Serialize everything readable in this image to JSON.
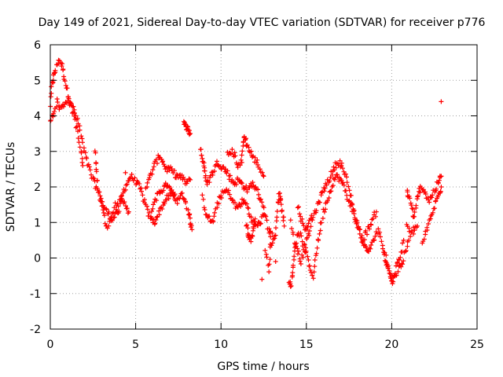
{
  "chart_data": {
    "type": "scatter",
    "title": "Day 149 of 2021, Sidereal Day-to-day VTEC variation (SDTVAR) for receiver p776",
    "xlabel": "GPS time / hours",
    "ylabel": "SDTVAR / TECUs",
    "xlim": [
      0,
      25
    ],
    "ylim": [
      -2,
      6
    ],
    "xticks": [
      "0",
      "5",
      "10",
      "15",
      "20",
      "25"
    ],
    "yticks": [
      "-2",
      "-1",
      "0",
      "1",
      "2",
      "3",
      "4",
      "5",
      "6"
    ],
    "grid": true,
    "marker": "+",
    "series": [
      {
        "name": "SDTVAR",
        "color": "#ff0000",
        "traces": [
          [
            [
              0.0,
              4.3
            ],
            [
              0.1,
              4.9
            ],
            [
              0.2,
              5.1
            ],
            [
              0.3,
              5.3
            ],
            [
              0.5,
              5.6
            ],
            [
              0.7,
              5.4
            ],
            [
              0.8,
              5.1
            ],
            [
              1.0,
              4.7
            ],
            [
              1.2,
              4.4
            ],
            [
              1.5,
              4.0
            ],
            [
              1.7,
              3.7
            ],
            [
              1.9,
              3.2
            ],
            [
              2.1,
              2.8
            ],
            [
              2.3,
              2.5
            ],
            [
              2.5,
              2.2
            ],
            [
              2.7,
              2.0
            ],
            [
              2.9,
              1.7
            ],
            [
              3.1,
              1.5
            ],
            [
              3.3,
              1.3
            ],
            [
              3.5,
              1.2
            ],
            [
              3.7,
              1.1
            ],
            [
              3.9,
              1.4
            ],
            [
              4.1,
              1.6
            ],
            [
              4.3,
              1.9
            ],
            [
              4.5,
              2.1
            ],
            [
              4.7,
              2.3
            ],
            [
              4.9,
              2.2
            ],
            [
              5.1,
              2.1
            ],
            [
              5.3,
              1.9
            ],
            [
              5.5,
              1.6
            ],
            [
              5.7,
              1.3
            ],
            [
              5.9,
              1.1
            ],
            [
              6.1,
              1.0
            ],
            [
              6.3,
              1.2
            ],
            [
              6.5,
              1.4
            ],
            [
              6.7,
              1.6
            ],
            [
              6.9,
              1.7
            ],
            [
              7.1,
              1.8
            ],
            [
              7.3,
              1.7
            ],
            [
              7.5,
              1.6
            ],
            [
              7.7,
              1.8
            ],
            [
              7.9,
              1.6
            ],
            [
              8.1,
              1.3
            ],
            [
              8.2,
              1.0
            ],
            [
              8.3,
              0.8
            ]
          ],
          [
            [
              0.0,
              3.9
            ],
            [
              0.2,
              4.1
            ],
            [
              0.4,
              4.4
            ],
            [
              0.6,
              4.2
            ],
            [
              0.8,
              4.3
            ],
            [
              1.0,
              4.5
            ],
            [
              1.2,
              4.3
            ],
            [
              1.4,
              4.0
            ],
            [
              1.6,
              3.5
            ],
            [
              1.8,
              3.0
            ],
            [
              1.9,
              2.6
            ]
          ],
          [
            [
              2.6,
              3.0
            ],
            [
              2.7,
              2.5
            ],
            [
              2.8,
              2.0
            ],
            [
              3.0,
              1.6
            ],
            [
              3.2,
              1.0
            ],
            [
              3.4,
              0.9
            ],
            [
              3.6,
              1.2
            ],
            [
              3.8,
              1.5
            ],
            [
              4.0,
              1.3
            ],
            [
              4.2,
              1.6
            ],
            [
              4.4,
              1.5
            ],
            [
              4.6,
              1.3
            ]
          ],
          [
            [
              5.6,
              2.0
            ],
            [
              5.8,
              2.2
            ],
            [
              6.0,
              2.5
            ],
            [
              6.2,
              2.7
            ],
            [
              6.4,
              2.9
            ],
            [
              6.6,
              2.7
            ],
            [
              6.8,
              2.5
            ],
            [
              7.0,
              2.5
            ],
            [
              7.2,
              2.4
            ],
            [
              7.4,
              2.3
            ],
            [
              7.6,
              2.3
            ],
            [
              7.8,
              2.2
            ],
            [
              8.0,
              2.1
            ],
            [
              8.2,
              2.2
            ]
          ],
          [
            [
              5.9,
              1.2
            ],
            [
              6.1,
              1.6
            ],
            [
              6.3,
              1.8
            ],
            [
              6.5,
              1.9
            ],
            [
              6.7,
              2.0
            ],
            [
              6.9,
              2.1
            ],
            [
              7.1,
              1.9
            ],
            [
              7.3,
              1.8
            ]
          ],
          [
            [
              7.8,
              3.8
            ],
            [
              7.9,
              3.7
            ],
            [
              8.0,
              3.7
            ],
            [
              8.1,
              3.6
            ],
            [
              8.2,
              3.5
            ]
          ],
          [
            [
              8.8,
              3.1
            ],
            [
              8.9,
              2.8
            ],
            [
              9.0,
              2.6
            ],
            [
              9.1,
              2.3
            ],
            [
              9.2,
              2.1
            ],
            [
              9.4,
              2.3
            ],
            [
              9.6,
              2.5
            ],
            [
              9.8,
              2.7
            ],
            [
              10.0,
              2.6
            ],
            [
              10.2,
              2.5
            ],
            [
              10.4,
              2.4
            ],
            [
              10.6,
              2.2
            ],
            [
              10.8,
              2.1
            ],
            [
              11.0,
              2.2
            ],
            [
              11.2,
              2.1
            ],
            [
              11.4,
              2.0
            ],
            [
              11.6,
              1.9
            ],
            [
              11.8,
              2.1
            ],
            [
              12.0,
              2.0
            ],
            [
              12.2,
              1.8
            ],
            [
              12.4,
              1.6
            ],
            [
              12.6,
              1.2
            ],
            [
              12.8,
              0.8
            ],
            [
              12.9,
              0.6
            ]
          ],
          [
            [
              8.9,
              1.7
            ],
            [
              9.1,
              1.3
            ],
            [
              9.3,
              1.1
            ],
            [
              9.5,
              1.0
            ],
            [
              9.7,
              1.3
            ],
            [
              9.9,
              1.7
            ],
            [
              10.1,
              1.8
            ],
            [
              10.3,
              1.9
            ],
            [
              10.5,
              1.8
            ],
            [
              10.7,
              1.6
            ],
            [
              10.9,
              1.4
            ],
            [
              11.1,
              1.5
            ],
            [
              11.3,
              1.6
            ],
            [
              11.5,
              1.5
            ],
            [
              11.7,
              1.2
            ],
            [
              11.9,
              1.0
            ],
            [
              12.1,
              0.9
            ],
            [
              12.3,
              1.0
            ],
            [
              12.5,
              1.2
            ]
          ],
          [
            [
              10.4,
              2.9
            ],
            [
              10.6,
              3.0
            ],
            [
              10.8,
              2.9
            ],
            [
              11.0,
              2.6
            ],
            [
              11.2,
              2.7
            ],
            [
              11.3,
              3.3
            ],
            [
              11.4,
              3.4
            ],
            [
              11.5,
              3.2
            ],
            [
              11.7,
              3.0
            ],
            [
              11.9,
              2.8
            ],
            [
              12.1,
              2.7
            ],
            [
              12.3,
              2.5
            ],
            [
              12.5,
              2.3
            ]
          ],
          [
            [
              11.5,
              0.9
            ],
            [
              11.6,
              0.7
            ],
            [
              11.7,
              0.5
            ],
            [
              11.8,
              0.6
            ],
            [
              11.9,
              0.8
            ],
            [
              12.0,
              1.1
            ]
          ],
          [
            [
              12.6,
              0.2
            ],
            [
              12.8,
              -0.3
            ],
            [
              12.9,
              0.4
            ],
            [
              13.2,
              0.6
            ],
            [
              13.3,
              1.4
            ],
            [
              13.4,
              1.8
            ],
            [
              13.5,
              1.7
            ],
            [
              13.6,
              1.3
            ],
            [
              13.7,
              0.9
            ]
          ],
          [
            [
              14.0,
              -0.6
            ],
            [
              14.1,
              -0.8
            ],
            [
              14.2,
              -0.4
            ],
            [
              14.3,
              0.1
            ],
            [
              14.4,
              0.5
            ],
            [
              14.6,
              0.7
            ],
            [
              14.8,
              0.4
            ],
            [
              15.0,
              0.1
            ],
            [
              15.2,
              -0.3
            ],
            [
              15.4,
              -0.5
            ],
            [
              15.6,
              0.2
            ],
            [
              15.8,
              0.8
            ],
            [
              16.0,
              1.3
            ],
            [
              16.2,
              1.6
            ],
            [
              16.4,
              1.9
            ],
            [
              16.6,
              2.2
            ],
            [
              16.8,
              2.3
            ],
            [
              17.0,
              2.2
            ],
            [
              17.2,
              2.0
            ],
            [
              17.4,
              1.7
            ],
            [
              17.6,
              1.5
            ],
            [
              17.8,
              1.2
            ],
            [
              18.0,
              0.9
            ],
            [
              18.2,
              0.6
            ],
            [
              18.4,
              0.3
            ],
            [
              18.6,
              0.2
            ],
            [
              18.8,
              0.3
            ],
            [
              19.0,
              0.6
            ],
            [
              19.2,
              0.8
            ],
            [
              19.4,
              0.5
            ],
            [
              19.6,
              0.0
            ],
            [
              19.8,
              -0.3
            ],
            [
              20.0,
              -0.7
            ],
            [
              20.2,
              -0.5
            ],
            [
              20.4,
              -0.3
            ],
            [
              20.6,
              -0.2
            ],
            [
              20.8,
              0.2
            ],
            [
              21.0,
              0.5
            ]
          ],
          [
            [
              14.1,
              1.0
            ],
            [
              14.3,
              0.5
            ],
            [
              14.5,
              0.2
            ],
            [
              14.7,
              -0.1
            ],
            [
              14.9,
              0.3
            ],
            [
              15.1,
              0.6
            ],
            [
              15.3,
              1.0
            ],
            [
              15.5,
              1.3
            ],
            [
              15.7,
              1.5
            ],
            [
              15.9,
              1.8
            ],
            [
              16.1,
              2.0
            ],
            [
              16.3,
              2.2
            ],
            [
              16.5,
              2.4
            ],
            [
              16.7,
              2.6
            ],
            [
              16.9,
              2.7
            ],
            [
              17.1,
              2.6
            ],
            [
              17.3,
              2.3
            ],
            [
              17.5,
              1.9
            ],
            [
              17.7,
              1.5
            ],
            [
              17.9,
              1.1
            ],
            [
              18.1,
              0.8
            ],
            [
              18.3,
              0.5
            ],
            [
              18.5,
              0.7
            ],
            [
              18.7,
              0.9
            ],
            [
              18.9,
              1.1
            ],
            [
              19.1,
              1.3
            ]
          ],
          [
            [
              14.5,
              1.5
            ],
            [
              14.7,
              1.1
            ],
            [
              14.9,
              0.8
            ],
            [
              15.1,
              0.9
            ],
            [
              15.3,
              1.2
            ]
          ],
          [
            [
              19.5,
              0.3
            ],
            [
              19.7,
              -0.1
            ],
            [
              19.9,
              -0.5
            ],
            [
              20.1,
              -0.6
            ],
            [
              20.3,
              -0.2
            ],
            [
              20.5,
              0.0
            ],
            [
              20.7,
              0.5
            ]
          ],
          [
            [
              20.9,
              1.9
            ],
            [
              21.0,
              1.7
            ],
            [
              21.2,
              1.4
            ],
            [
              21.3,
              1.1
            ],
            [
              21.5,
              1.6
            ],
            [
              21.6,
              1.9
            ],
            [
              21.8,
              2.0
            ],
            [
              22.0,
              1.8
            ],
            [
              22.2,
              1.6
            ],
            [
              22.4,
              1.8
            ],
            [
              22.6,
              2.0
            ],
            [
              22.8,
              2.2
            ],
            [
              22.9,
              2.3
            ]
          ],
          [
            [
              20.9,
              1.0
            ],
            [
              21.1,
              0.6
            ],
            [
              21.3,
              0.8
            ],
            [
              21.5,
              0.9
            ]
          ],
          [
            [
              21.8,
              0.4
            ],
            [
              22.0,
              0.7
            ],
            [
              22.2,
              1.0
            ],
            [
              22.4,
              1.3
            ],
            [
              22.6,
              1.6
            ],
            [
              22.8,
              1.8
            ],
            [
              22.9,
              2.0
            ]
          ]
        ],
        "isolated_points": [
          [
            22.9,
            4.4
          ],
          [
            4.4,
            2.4
          ],
          [
            13.0,
            0.7
          ],
          [
            13.2,
            -0.1
          ],
          [
            12.4,
            -0.6
          ]
        ]
      }
    ]
  }
}
